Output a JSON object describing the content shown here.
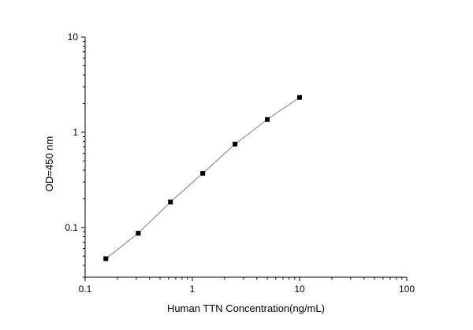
{
  "chart_data": {
    "type": "scatter",
    "title": "",
    "xlabel": "Human TTN Concentration(ng/mL)",
    "ylabel": "OD=450 nm",
    "xscale": "log",
    "yscale": "log",
    "xlim": [
      0.1,
      100
    ],
    "ylim": [
      0.03,
      10
    ],
    "xticks": [
      0.1,
      1,
      10,
      100
    ],
    "xtick_labels": [
      "0.1",
      "1",
      "10",
      "100"
    ],
    "yticks": [
      0.1,
      1,
      10
    ],
    "ytick_labels": [
      "0.1",
      "1",
      "10"
    ],
    "grid": false,
    "legend": "none",
    "fit_line": true,
    "x": [
      0.156,
      0.313,
      0.625,
      1.25,
      2.5,
      5,
      10
    ],
    "y": [
      0.047,
      0.087,
      0.185,
      0.37,
      0.75,
      1.36,
      2.32
    ],
    "marker_color": "#000000",
    "line_color": "#7f7f7f"
  }
}
